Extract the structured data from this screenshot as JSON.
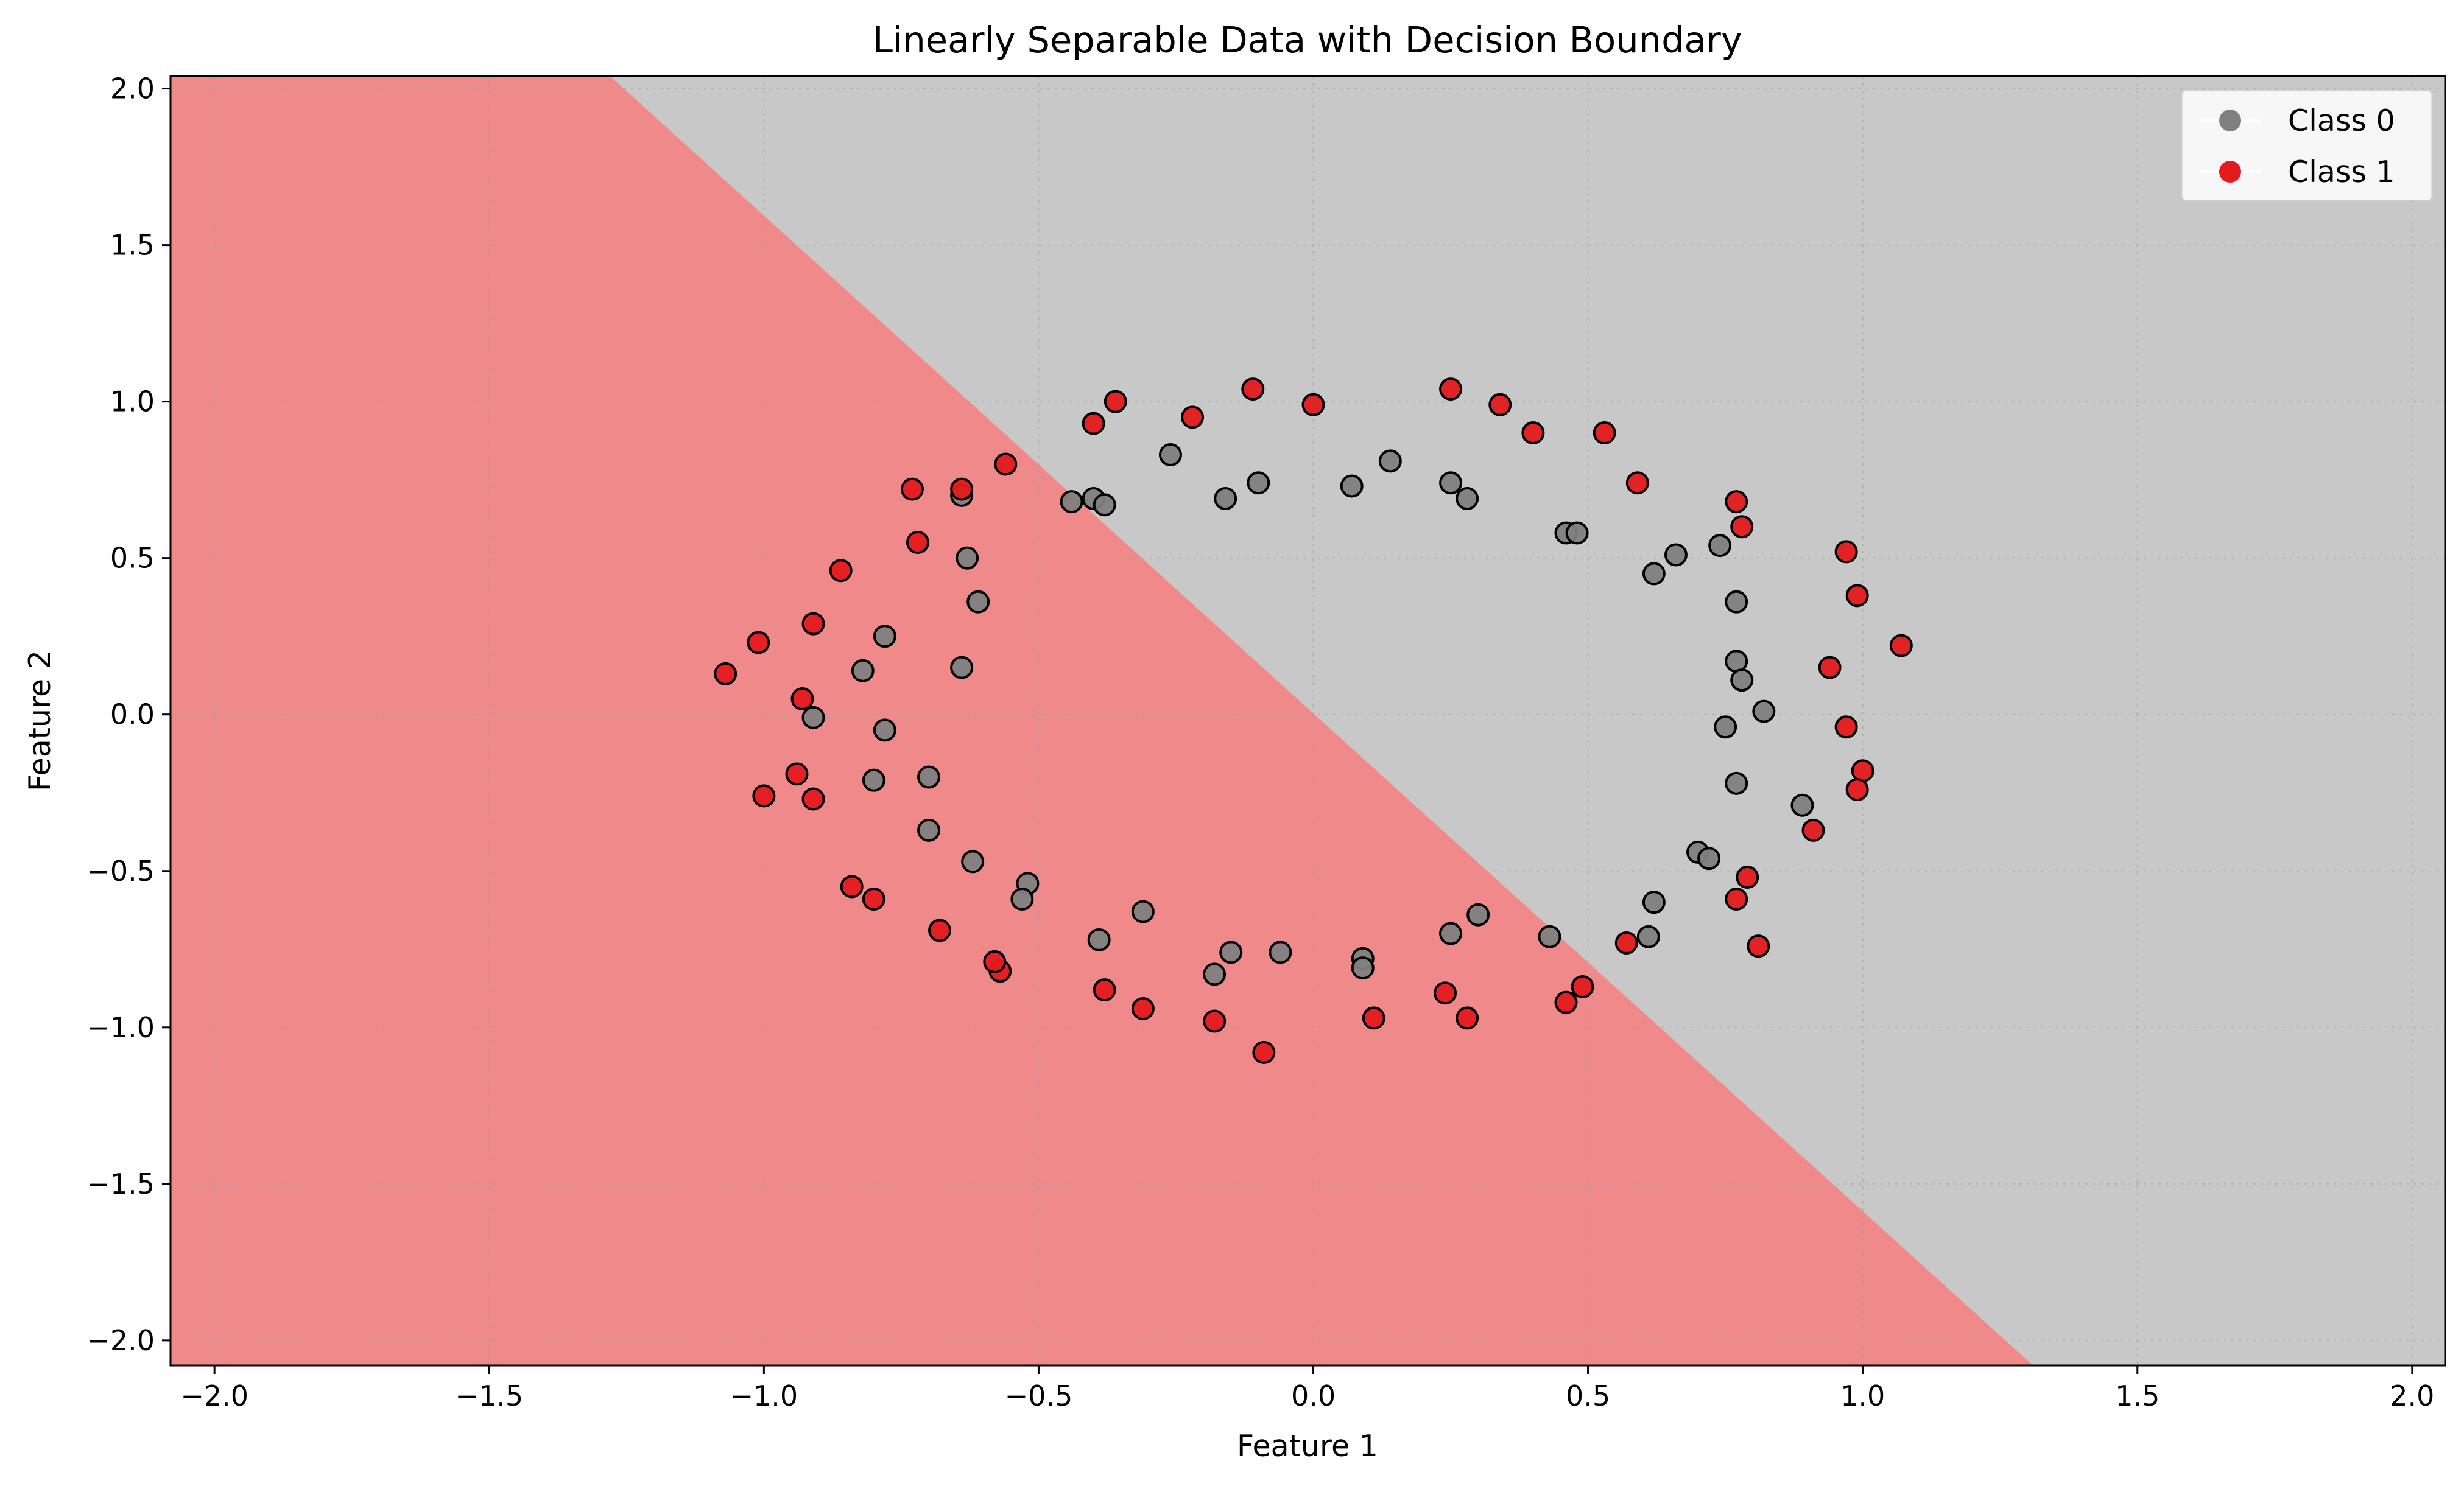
{
  "chart_data": {
    "type": "scatter",
    "title": "Linearly Separable Data with Decision Boundary",
    "xlabel": "Feature 1",
    "ylabel": "Feature 2",
    "xlim": [
      -2.08,
      2.06
    ],
    "ylim": [
      -2.08,
      2.04
    ],
    "xticks": [
      -2.0,
      -1.5,
      -1.0,
      -0.5,
      0.0,
      0.5,
      1.0,
      1.5,
      2.0
    ],
    "yticks": [
      -2.0,
      -1.5,
      -1.0,
      -0.5,
      0.0,
      0.5,
      1.0,
      1.5,
      2.0
    ],
    "grid": true,
    "legend_position": "top-right",
    "decision_boundary": {
      "points": [
        [
          -1.28,
          2.04
        ],
        [
          1.31,
          -2.08
        ]
      ],
      "region_colors": {
        "class_0": "#c8c8c8",
        "class_1": "#f08a8a"
      }
    },
    "series": [
      {
        "name": "Class 0",
        "color": "#808080",
        "points": [
          [
            -0.26,
            0.83
          ],
          [
            -0.16,
            0.69
          ],
          [
            -0.1,
            0.74
          ],
          [
            0.07,
            0.73
          ],
          [
            0.14,
            0.81
          ],
          [
            0.25,
            0.74
          ],
          [
            0.28,
            0.69
          ],
          [
            0.46,
            0.58
          ],
          [
            0.48,
            0.58
          ],
          [
            0.62,
            0.45
          ],
          [
            0.66,
            0.51
          ],
          [
            0.74,
            0.54
          ],
          [
            0.77,
            0.36
          ],
          [
            0.77,
            0.17
          ],
          [
            0.78,
            0.11
          ],
          [
            0.82,
            0.01
          ],
          [
            0.75,
            -0.04
          ],
          [
            0.77,
            -0.22
          ],
          [
            0.89,
            -0.29
          ],
          [
            0.7,
            -0.44
          ],
          [
            0.72,
            -0.46
          ],
          [
            0.62,
            -0.6
          ],
          [
            0.61,
            -0.71
          ],
          [
            0.43,
            -0.71
          ],
          [
            0.3,
            -0.64
          ],
          [
            0.25,
            -0.7
          ],
          [
            0.09,
            -0.78
          ],
          [
            0.09,
            -0.81
          ],
          [
            -0.06,
            -0.76
          ],
          [
            -0.15,
            -0.76
          ],
          [
            -0.18,
            -0.83
          ],
          [
            -0.31,
            -0.63
          ],
          [
            -0.39,
            -0.72
          ],
          [
            -0.52,
            -0.54
          ],
          [
            -0.53,
            -0.59
          ],
          [
            -0.62,
            -0.47
          ],
          [
            -0.7,
            -0.37
          ],
          [
            -0.7,
            -0.2
          ],
          [
            -0.8,
            -0.21
          ],
          [
            -0.78,
            -0.05
          ],
          [
            -0.91,
            -0.01
          ],
          [
            -0.82,
            0.14
          ],
          [
            -0.78,
            0.25
          ],
          [
            -0.64,
            0.15
          ],
          [
            -0.61,
            0.36
          ],
          [
            -0.63,
            0.5
          ],
          [
            -0.64,
            0.7
          ],
          [
            -0.44,
            0.68
          ],
          [
            -0.4,
            0.69
          ],
          [
            -0.38,
            0.67
          ]
        ]
      },
      {
        "name": "Class 1",
        "color": "#e41a1c",
        "points": [
          [
            -0.4,
            0.93
          ],
          [
            -0.36,
            1.0
          ],
          [
            -0.22,
            0.95
          ],
          [
            -0.11,
            1.04
          ],
          [
            0.0,
            0.99
          ],
          [
            0.25,
            1.04
          ],
          [
            0.34,
            0.99
          ],
          [
            0.4,
            0.9
          ],
          [
            0.53,
            0.9
          ],
          [
            0.59,
            0.74
          ],
          [
            0.77,
            0.68
          ],
          [
            0.78,
            0.6
          ],
          [
            0.97,
            0.52
          ],
          [
            0.99,
            0.38
          ],
          [
            1.07,
            0.22
          ],
          [
            0.94,
            0.15
          ],
          [
            0.97,
            -0.04
          ],
          [
            1.0,
            -0.18
          ],
          [
            0.99,
            -0.24
          ],
          [
            0.91,
            -0.37
          ],
          [
            0.79,
            -0.52
          ],
          [
            0.77,
            -0.59
          ],
          [
            0.81,
            -0.74
          ],
          [
            0.57,
            -0.73
          ],
          [
            0.49,
            -0.87
          ],
          [
            0.46,
            -0.92
          ],
          [
            0.28,
            -0.97
          ],
          [
            0.24,
            -0.89
          ],
          [
            0.11,
            -0.97
          ],
          [
            -0.09,
            -1.08
          ],
          [
            -0.18,
            -0.98
          ],
          [
            -0.31,
            -0.94
          ],
          [
            -0.38,
            -0.88
          ],
          [
            -0.57,
            -0.82
          ],
          [
            -0.58,
            -0.79
          ],
          [
            -0.68,
            -0.69
          ],
          [
            -0.8,
            -0.59
          ],
          [
            -0.84,
            -0.55
          ],
          [
            -0.91,
            -0.27
          ],
          [
            -0.94,
            -0.19
          ],
          [
            -1.0,
            -0.26
          ],
          [
            -0.93,
            0.05
          ],
          [
            -1.07,
            0.13
          ],
          [
            -1.01,
            0.23
          ],
          [
            -0.91,
            0.29
          ],
          [
            -0.86,
            0.46
          ],
          [
            -0.72,
            0.55
          ],
          [
            -0.73,
            0.72
          ],
          [
            -0.64,
            0.72
          ],
          [
            -0.56,
            0.8
          ]
        ]
      }
    ]
  }
}
